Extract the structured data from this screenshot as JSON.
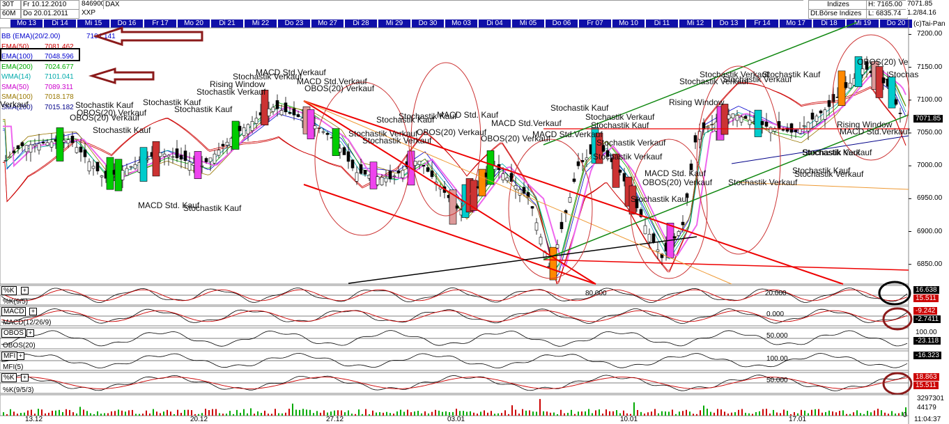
{
  "header": {
    "sym": "30T",
    "period": "60M",
    "date_from": "Fr 10.12.2010",
    "date_to": "Do 20.01.2011",
    "wkn": "846900",
    "exch": "XXP",
    "name": "DAX",
    "group": "Indizes",
    "source": "Dt.Börse Indizes",
    "high": "H: 7165.00",
    "low": "L: 6835.74",
    "price": "7071.85",
    "change": "1.2/84.16",
    "copyright": "(c)Tai-Pan"
  },
  "days": [
    "Mo 13",
    "Di 14",
    "Mi 15",
    "Do 16",
    "Fr 17",
    "Mo 20",
    "Di 21",
    "Mi 22",
    "Do 23",
    "Mo 27",
    "Di 28",
    "Mi 29",
    "Do 30",
    "Mo 03",
    "Di 04",
    "Mi 05",
    "Do 06",
    "Fr 07",
    "Mo 10",
    "Di 11",
    "Mi 12",
    "Do 13",
    "Fr 14",
    "Mo 17",
    "Di 18",
    "Mi 19",
    "Do 20"
  ],
  "legend": [
    {
      "label": "BB (EMA)(20/2.00)",
      "value": "7104.141",
      "color": "#0000cc"
    },
    {
      "label": "EMA(50)",
      "value": "7081.462",
      "color": "#cc0000"
    },
    {
      "label": "EMA(100)",
      "value": "7048.596",
      "color": "#0000cc"
    },
    {
      "label": "EMA(200)",
      "value": "7024.677",
      "color": "#00aa00"
    },
    {
      "label": "WMA(14)",
      "value": "7101.041",
      "color": "#00aaaa"
    },
    {
      "label": "SMA(50)",
      "value": "7089.311",
      "color": "#cc00cc"
    },
    {
      "label": "SMA(100)",
      "value": "7018.178",
      "color": "#997700"
    },
    {
      "label": "SMA(200)",
      "value": "7015.182",
      "color": "#000088"
    }
  ],
  "annotations": [
    "Stochastik Kauf",
    "MACD Std. Kauf",
    "Stochastik Verkauf",
    "OBOS(20) Verkauf",
    "Rising Window",
    "MACD Std.Verkauf",
    "OBOS(20) Ve",
    "Verkauf",
    "Stochas"
  ],
  "y_axis": {
    "ticks": [
      "7200.00",
      "7150.00",
      "7100.00",
      "7050.00",
      "7000.00",
      "6950.00",
      "6900.00",
      "6850.00"
    ]
  },
  "price_tags": {
    "last": "7071.85"
  },
  "panels": [
    {
      "label": "%K",
      "sub": "%K(9/5)",
      "level": "80.000",
      "level2": "20.000",
      "v1": "16.638",
      "v2": "15.511"
    },
    {
      "label": "MACD",
      "sub": "MACD(12/26/9)",
      "level": "0.000",
      "v1": "-9.242",
      "v2": "-2.7411"
    },
    {
      "label": "OBOS",
      "sub": "OBOS(20)",
      "level": "50.000",
      "v1": "100.00",
      "v2": "-23.118"
    },
    {
      "label": "MFI",
      "sub": "MFI(5)",
      "level": "100.00",
      "v1": "-16.323"
    },
    {
      "label": "%K",
      "sub": "%K(9/5/3)",
      "level": "50.000",
      "v1": "18.863",
      "v2": "15.511"
    }
  ],
  "volume": {
    "v1": "3297301",
    "v2": "44179",
    "zero": "0"
  },
  "x_labels": [
    "13.12",
    "20.12",
    "27.12",
    "03.01",
    "10.01",
    "17.01"
  ],
  "clock": "11:04:37",
  "chart_data": {
    "type": "candlestick",
    "title": "DAX",
    "ylim": [
      6820,
      7210
    ],
    "close_last": 7071.85,
    "high": 7165.0,
    "low": 6835.74
  },
  "colors": {
    "day_bg": "#0f0fa8",
    "bull": "#00cc00",
    "bear": "#cc3333",
    "line_red": "#ee0000",
    "line_green": "#118811"
  }
}
